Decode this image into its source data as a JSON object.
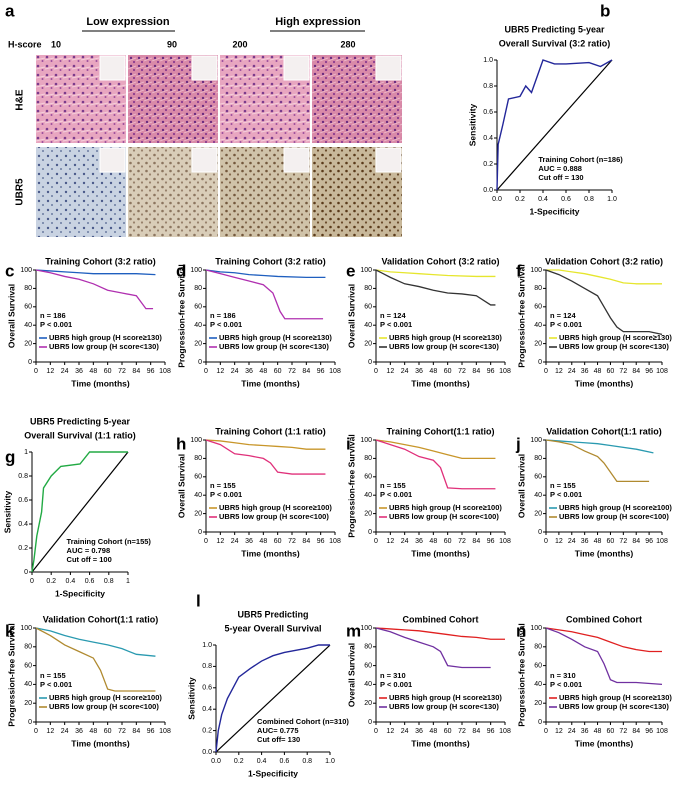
{
  "panel_a": {
    "label": "a",
    "groups": [
      "Low expression",
      "High expression"
    ],
    "score_label": "H-score",
    "scores": [
      "10",
      "90",
      "200",
      "280"
    ],
    "stains": [
      "H&E",
      "UBR5"
    ]
  },
  "chart_data": [
    {
      "type": "roc",
      "label": "b",
      "title": [
        "UBR5 Predicting 5-year",
        "Overall Survival (3:2 ratio)"
      ],
      "xlabel": "1-Specificity",
      "ylabel": "Sensitivity",
      "xlim": [
        0,
        1
      ],
      "ylim": [
        0,
        1
      ],
      "xticks": [
        {
          "value": 0,
          "label": "0.0"
        },
        0.2,
        0.4,
        0.6,
        0.8,
        {
          "value": 1,
          "label": "1.0"
        }
      ],
      "yticks": [
        {
          "value": 0,
          "label": "0.0"
        },
        0.2,
        0.4,
        0.6,
        0.8,
        {
          "value": 1,
          "label": "1.0"
        }
      ],
      "annotations": [
        "Training Cohort (n=186)",
        "AUC = 0.888",
        "Cut off = 130"
      ],
      "series": [
        {
          "color": "#23279a",
          "x": [
            0,
            0.01,
            0.05,
            0.1,
            0.2,
            0.25,
            0.3,
            0.4,
            0.5,
            0.6,
            0.8,
            0.9,
            1
          ],
          "values": [
            0,
            0.35,
            0.5,
            0.7,
            0.72,
            0.8,
            0.75,
            1,
            0.97,
            0.97,
            0.98,
            0.95,
            1
          ]
        }
      ]
    },
    {
      "type": "line",
      "label": "c",
      "title": "Training Cohort (3:2 ratio)",
      "xlabel": "Time (months)",
      "ylabel": "Overall Survival",
      "xlim": [
        0,
        108
      ],
      "ylim": [
        0,
        100
      ],
      "xticks": [
        0,
        12,
        24,
        36,
        48,
        60,
        72,
        84,
        96,
        108
      ],
      "yticks": [
        0,
        20,
        40,
        60,
        80,
        100
      ],
      "annotations": [
        "n = 186",
        "P < 0.001"
      ],
      "series": [
        {
          "name": "UBR5 high group (H score≥130)",
          "color": "#1f5fbf",
          "x": [
            0,
            12,
            24,
            36,
            48,
            60,
            84,
            100
          ],
          "values": [
            100,
            99,
            98,
            97,
            96,
            96,
            96,
            95
          ]
        },
        {
          "name": "UBR5 low group (H score<130)",
          "color": "#b030b0",
          "x": [
            0,
            12,
            24,
            36,
            48,
            60,
            72,
            84,
            92,
            98
          ],
          "values": [
            100,
            97,
            93,
            90,
            85,
            78,
            75,
            72,
            58,
            58
          ]
        }
      ]
    },
    {
      "type": "line",
      "label": "d",
      "title": "Training Cohort (3:2 ratio)",
      "xlabel": "Time (months)",
      "ylabel": "Progression-free Survival",
      "xlim": [
        0,
        108
      ],
      "ylim": [
        0,
        100
      ],
      "xticks": [
        0,
        12,
        24,
        36,
        48,
        60,
        72,
        84,
        96,
        108
      ],
      "yticks": [
        0,
        20,
        40,
        60,
        80,
        100
      ],
      "annotations": [
        "n = 186",
        "P < 0.001"
      ],
      "series": [
        {
          "name": "UBR5 high group (H score≥130)",
          "color": "#1f5fbf",
          "x": [
            0,
            12,
            24,
            36,
            48,
            60,
            84,
            100
          ],
          "values": [
            100,
            98,
            97,
            95,
            94,
            93,
            92,
            92
          ]
        },
        {
          "name": "UBR5 low group (H score<130)",
          "color": "#b030b0",
          "x": [
            0,
            12,
            24,
            36,
            48,
            56,
            62,
            66,
            84,
            98
          ],
          "values": [
            100,
            96,
            92,
            88,
            84,
            75,
            55,
            47,
            47,
            47
          ]
        }
      ]
    },
    {
      "type": "line",
      "label": "e",
      "title": "Validation Cohort (3:2 ratio)",
      "xlabel": "Time (months)",
      "ylabel": "Overall Survival",
      "xlim": [
        0,
        108
      ],
      "ylim": [
        0,
        100
      ],
      "xticks": [
        0,
        12,
        24,
        36,
        48,
        60,
        72,
        84,
        96,
        108
      ],
      "yticks": [
        0,
        20,
        40,
        60,
        80,
        100
      ],
      "annotations": [
        "n = 124",
        "P < 0.001"
      ],
      "series": [
        {
          "name": "UBR5 high group (H score≥130)",
          "color": "#e6e62e",
          "x": [
            0,
            12,
            24,
            36,
            48,
            60,
            84,
            100
          ],
          "values": [
            100,
            98,
            97,
            96,
            95,
            94,
            93,
            93
          ]
        },
        {
          "name": "UBR5 low group (H score<130)",
          "color": "#333333",
          "x": [
            0,
            12,
            24,
            36,
            48,
            60,
            72,
            84,
            96,
            100
          ],
          "values": [
            100,
            92,
            85,
            82,
            78,
            75,
            74,
            72,
            62,
            62
          ]
        }
      ]
    },
    {
      "type": "line",
      "label": "f",
      "title": "Validation Cohort (3:2 ratio)",
      "xlabel": "Time (months)",
      "ylabel": "Progression-free Survival",
      "xlim": [
        0,
        108
      ],
      "ylim": [
        0,
        100
      ],
      "xticks": [
        0,
        12,
        24,
        36,
        48,
        60,
        72,
        84,
        96,
        108
      ],
      "yticks": [
        0,
        20,
        40,
        60,
        80,
        100
      ],
      "annotations": [
        "n = 124",
        "P < 0.001"
      ],
      "series": [
        {
          "name": "UBR5 high group (H score≥130)",
          "color": "#e6e62e",
          "x": [
            0,
            12,
            24,
            36,
            48,
            60,
            72,
            84,
            108
          ],
          "values": [
            100,
            100,
            98,
            96,
            93,
            90,
            86,
            85,
            85
          ]
        },
        {
          "name": "UBR5 low group (H score<130)",
          "color": "#333333",
          "x": [
            0,
            12,
            24,
            36,
            48,
            54,
            60,
            66,
            72,
            96,
            108
          ],
          "values": [
            100,
            95,
            88,
            80,
            72,
            60,
            48,
            38,
            33,
            33,
            30
          ]
        }
      ]
    },
    {
      "type": "roc",
      "label": "g",
      "title": [
        "UBR5 Predicting 5-year",
        "Overall Survival (1:1 ratio)"
      ],
      "xlabel": "1-Specificity",
      "ylabel": "Sensitivity",
      "xlim": [
        0,
        1
      ],
      "ylim": [
        0,
        1
      ],
      "xticks": [
        0,
        0.2,
        0.4,
        0.6,
        0.8,
        1
      ],
      "yticks": [
        0,
        0.2,
        0.4,
        0.6,
        0.8,
        1
      ],
      "annotations": [
        "Training Cohort (n=155)",
        "AUC = 0.798",
        "Cut off = 100"
      ],
      "series": [
        {
          "color": "#22aa44",
          "x": [
            0,
            0.02,
            0.05,
            0.1,
            0.12,
            0.2,
            0.3,
            0.5,
            0.6,
            0.8,
            1
          ],
          "values": [
            0,
            0.1,
            0.3,
            0.5,
            0.7,
            0.8,
            0.88,
            0.9,
            1,
            1,
            1
          ]
        }
      ]
    },
    {
      "type": "line",
      "label": "h",
      "title": "Training Cohort (1:1 ratio)",
      "xlabel": "Time (months)",
      "ylabel": "Overall Survival",
      "xlim": [
        0,
        108
      ],
      "ylim": [
        0,
        100
      ],
      "xticks": [
        0,
        12,
        24,
        36,
        48,
        60,
        72,
        84,
        96,
        108
      ],
      "yticks": [
        0,
        20,
        40,
        60,
        80,
        100
      ],
      "annotations": [
        "n = 155",
        "P < 0.001"
      ],
      "series": [
        {
          "name": "UBR5 high group (H score≥100)",
          "color": "#c8962a",
          "x": [
            0,
            12,
            24,
            36,
            48,
            60,
            72,
            84,
            100
          ],
          "values": [
            100,
            99,
            97,
            95,
            94,
            93,
            92,
            90,
            90
          ]
        },
        {
          "name": "UBR5 low group (H score<100)",
          "color": "#e0307a",
          "x": [
            0,
            12,
            24,
            36,
            48,
            54,
            60,
            72,
            100
          ],
          "values": [
            100,
            95,
            85,
            83,
            80,
            75,
            65,
            63,
            63
          ]
        }
      ]
    },
    {
      "type": "line",
      "label": "i",
      "title": "Training Cohort(1:1 ratio)",
      "xlabel": "Time (months)",
      "ylabel": "Progression-free Survival",
      "xlim": [
        0,
        108
      ],
      "ylim": [
        0,
        100
      ],
      "xticks": [
        0,
        12,
        24,
        36,
        48,
        60,
        72,
        84,
        96,
        108
      ],
      "yticks": [
        0,
        20,
        40,
        60,
        80,
        100
      ],
      "annotations": [
        "n = 155",
        "P < 0.001"
      ],
      "series": [
        {
          "name": "UBR5 high group (H score≥100)",
          "color": "#c8962a",
          "x": [
            0,
            12,
            24,
            36,
            48,
            60,
            72,
            100
          ],
          "values": [
            100,
            98,
            95,
            92,
            88,
            84,
            80,
            80
          ]
        },
        {
          "name": "UBR5 low group (H score<100)",
          "color": "#e0307a",
          "x": [
            0,
            12,
            24,
            36,
            48,
            54,
            60,
            72,
            100
          ],
          "values": [
            100,
            95,
            90,
            82,
            78,
            70,
            48,
            47,
            47
          ]
        }
      ]
    },
    {
      "type": "line",
      "label": "j",
      "title": "Validation Cohort(1:1 ratio)",
      "xlabel": "Time (months)",
      "ylabel": "Overall Survival",
      "xlim": [
        0,
        108
      ],
      "ylim": [
        0,
        100
      ],
      "xticks": [
        0,
        12,
        24,
        36,
        48,
        60,
        72,
        84,
        96,
        108
      ],
      "yticks": [
        0,
        20,
        40,
        60,
        80,
        100
      ],
      "annotations": [
        "n = 155",
        "P < 0.001"
      ],
      "series": [
        {
          "name": "UBR5 high group (H score≥100)",
          "color": "#2a9ab0",
          "x": [
            0,
            12,
            24,
            36,
            48,
            60,
            84,
            100
          ],
          "values": [
            100,
            99,
            98,
            97,
            96,
            94,
            90,
            86
          ]
        },
        {
          "name": "UBR5 low group (H score<100)",
          "color": "#b08a30",
          "x": [
            0,
            12,
            24,
            36,
            48,
            54,
            66,
            96
          ],
          "values": [
            100,
            98,
            95,
            88,
            82,
            75,
            55,
            55
          ]
        }
      ]
    },
    {
      "type": "line",
      "label": "k",
      "title": "Validation Cohort(1:1 ratio)",
      "xlabel": "Time (months)",
      "ylabel": "Progression-free Survival",
      "xlim": [
        0,
        108
      ],
      "ylim": [
        0,
        100
      ],
      "xticks": [
        0,
        12,
        24,
        36,
        48,
        60,
        72,
        84,
        96,
        108
      ],
      "yticks": [
        0,
        20,
        40,
        60,
        80,
        100
      ],
      "annotations": [
        "n = 155",
        "P < 0.001"
      ],
      "series": [
        {
          "name": "UBR5 high group (H score≥100)",
          "color": "#2a9ab0",
          "x": [
            0,
            12,
            24,
            36,
            48,
            60,
            72,
            84,
            100
          ],
          "values": [
            100,
            97,
            92,
            88,
            85,
            82,
            78,
            72,
            70
          ]
        },
        {
          "name": "UBR5 low group (H score<100)",
          "color": "#b08a30",
          "x": [
            0,
            12,
            24,
            36,
            48,
            54,
            60,
            66,
            100
          ],
          "values": [
            100,
            92,
            82,
            75,
            68,
            55,
            35,
            33,
            33
          ]
        }
      ]
    },
    {
      "type": "roc",
      "label": "l",
      "title": [
        "UBR5 Predicting",
        "5-year Overall Survival"
      ],
      "xlabel": "1-Specificity",
      "ylabel": "Sensitivity",
      "xlim": [
        0,
        1
      ],
      "ylim": [
        0,
        1
      ],
      "xticks": [
        {
          "value": 0,
          "label": "0.0"
        },
        0.2,
        0.4,
        0.6,
        0.8,
        {
          "value": 1,
          "label": "1.0"
        }
      ],
      "yticks": [
        {
          "value": 0,
          "label": "0.0"
        },
        0.2,
        0.4,
        0.6,
        0.8,
        {
          "value": 1,
          "label": "1.0"
        }
      ],
      "annotations": [
        "Combined Cohort (n=310)",
        "AUC= 0.775",
        "Cut off= 130"
      ],
      "series": [
        {
          "color": "#23279a",
          "x": [
            0,
            0.02,
            0.05,
            0.1,
            0.15,
            0.2,
            0.3,
            0.4,
            0.5,
            0.6,
            0.8,
            0.9,
            1
          ],
          "values": [
            0,
            0.2,
            0.35,
            0.5,
            0.6,
            0.7,
            0.78,
            0.85,
            0.9,
            0.93,
            0.97,
            1,
            1
          ]
        }
      ]
    },
    {
      "type": "line",
      "label": "m",
      "title": "Combined Cohort",
      "xlabel": "Time (months)",
      "ylabel": "Overall Survival",
      "xlim": [
        0,
        108
      ],
      "ylim": [
        0,
        100
      ],
      "xticks": [
        0,
        12,
        24,
        36,
        48,
        60,
        72,
        84,
        96,
        108
      ],
      "yticks": [
        0,
        20,
        40,
        60,
        80,
        100
      ],
      "annotations": [
        "n = 310",
        "P < 0.001"
      ],
      "series": [
        {
          "name": "UBR5 high group (H score≥130)",
          "color": "#e02020",
          "x": [
            0,
            12,
            24,
            36,
            48,
            60,
            72,
            84,
            96,
            108
          ],
          "values": [
            100,
            99,
            98,
            97,
            95,
            93,
            91,
            90,
            88,
            88
          ]
        },
        {
          "name": "UBR5 low group (H score<130)",
          "color": "#7030a0",
          "x": [
            0,
            12,
            24,
            36,
            48,
            54,
            60,
            72,
            96
          ],
          "values": [
            100,
            96,
            90,
            85,
            80,
            75,
            60,
            58,
            58
          ]
        }
      ]
    },
    {
      "type": "line",
      "label": "n",
      "title": "Combined Cohort",
      "xlabel": "Time (months)",
      "ylabel": "Progression-free Survival",
      "xlim": [
        0,
        108
      ],
      "ylim": [
        0,
        100
      ],
      "xticks": [
        0,
        12,
        24,
        36,
        48,
        60,
        72,
        84,
        96,
        108
      ],
      "yticks": [
        0,
        20,
        40,
        60,
        80,
        100
      ],
      "annotations": [
        "n = 310",
        "P < 0.001"
      ],
      "series": [
        {
          "name": "UBR5 high group (H score≥130)",
          "color": "#e02020",
          "x": [
            0,
            12,
            24,
            36,
            48,
            60,
            72,
            84,
            96,
            108
          ],
          "values": [
            100,
            98,
            96,
            93,
            90,
            85,
            80,
            77,
            75,
            75
          ]
        },
        {
          "name": "UBR5 low group (H score<130)",
          "color": "#7030a0",
          "x": [
            0,
            12,
            24,
            36,
            48,
            54,
            60,
            66,
            84,
            108
          ],
          "values": [
            100,
            95,
            88,
            80,
            75,
            62,
            45,
            42,
            42,
            40
          ]
        }
      ]
    }
  ]
}
